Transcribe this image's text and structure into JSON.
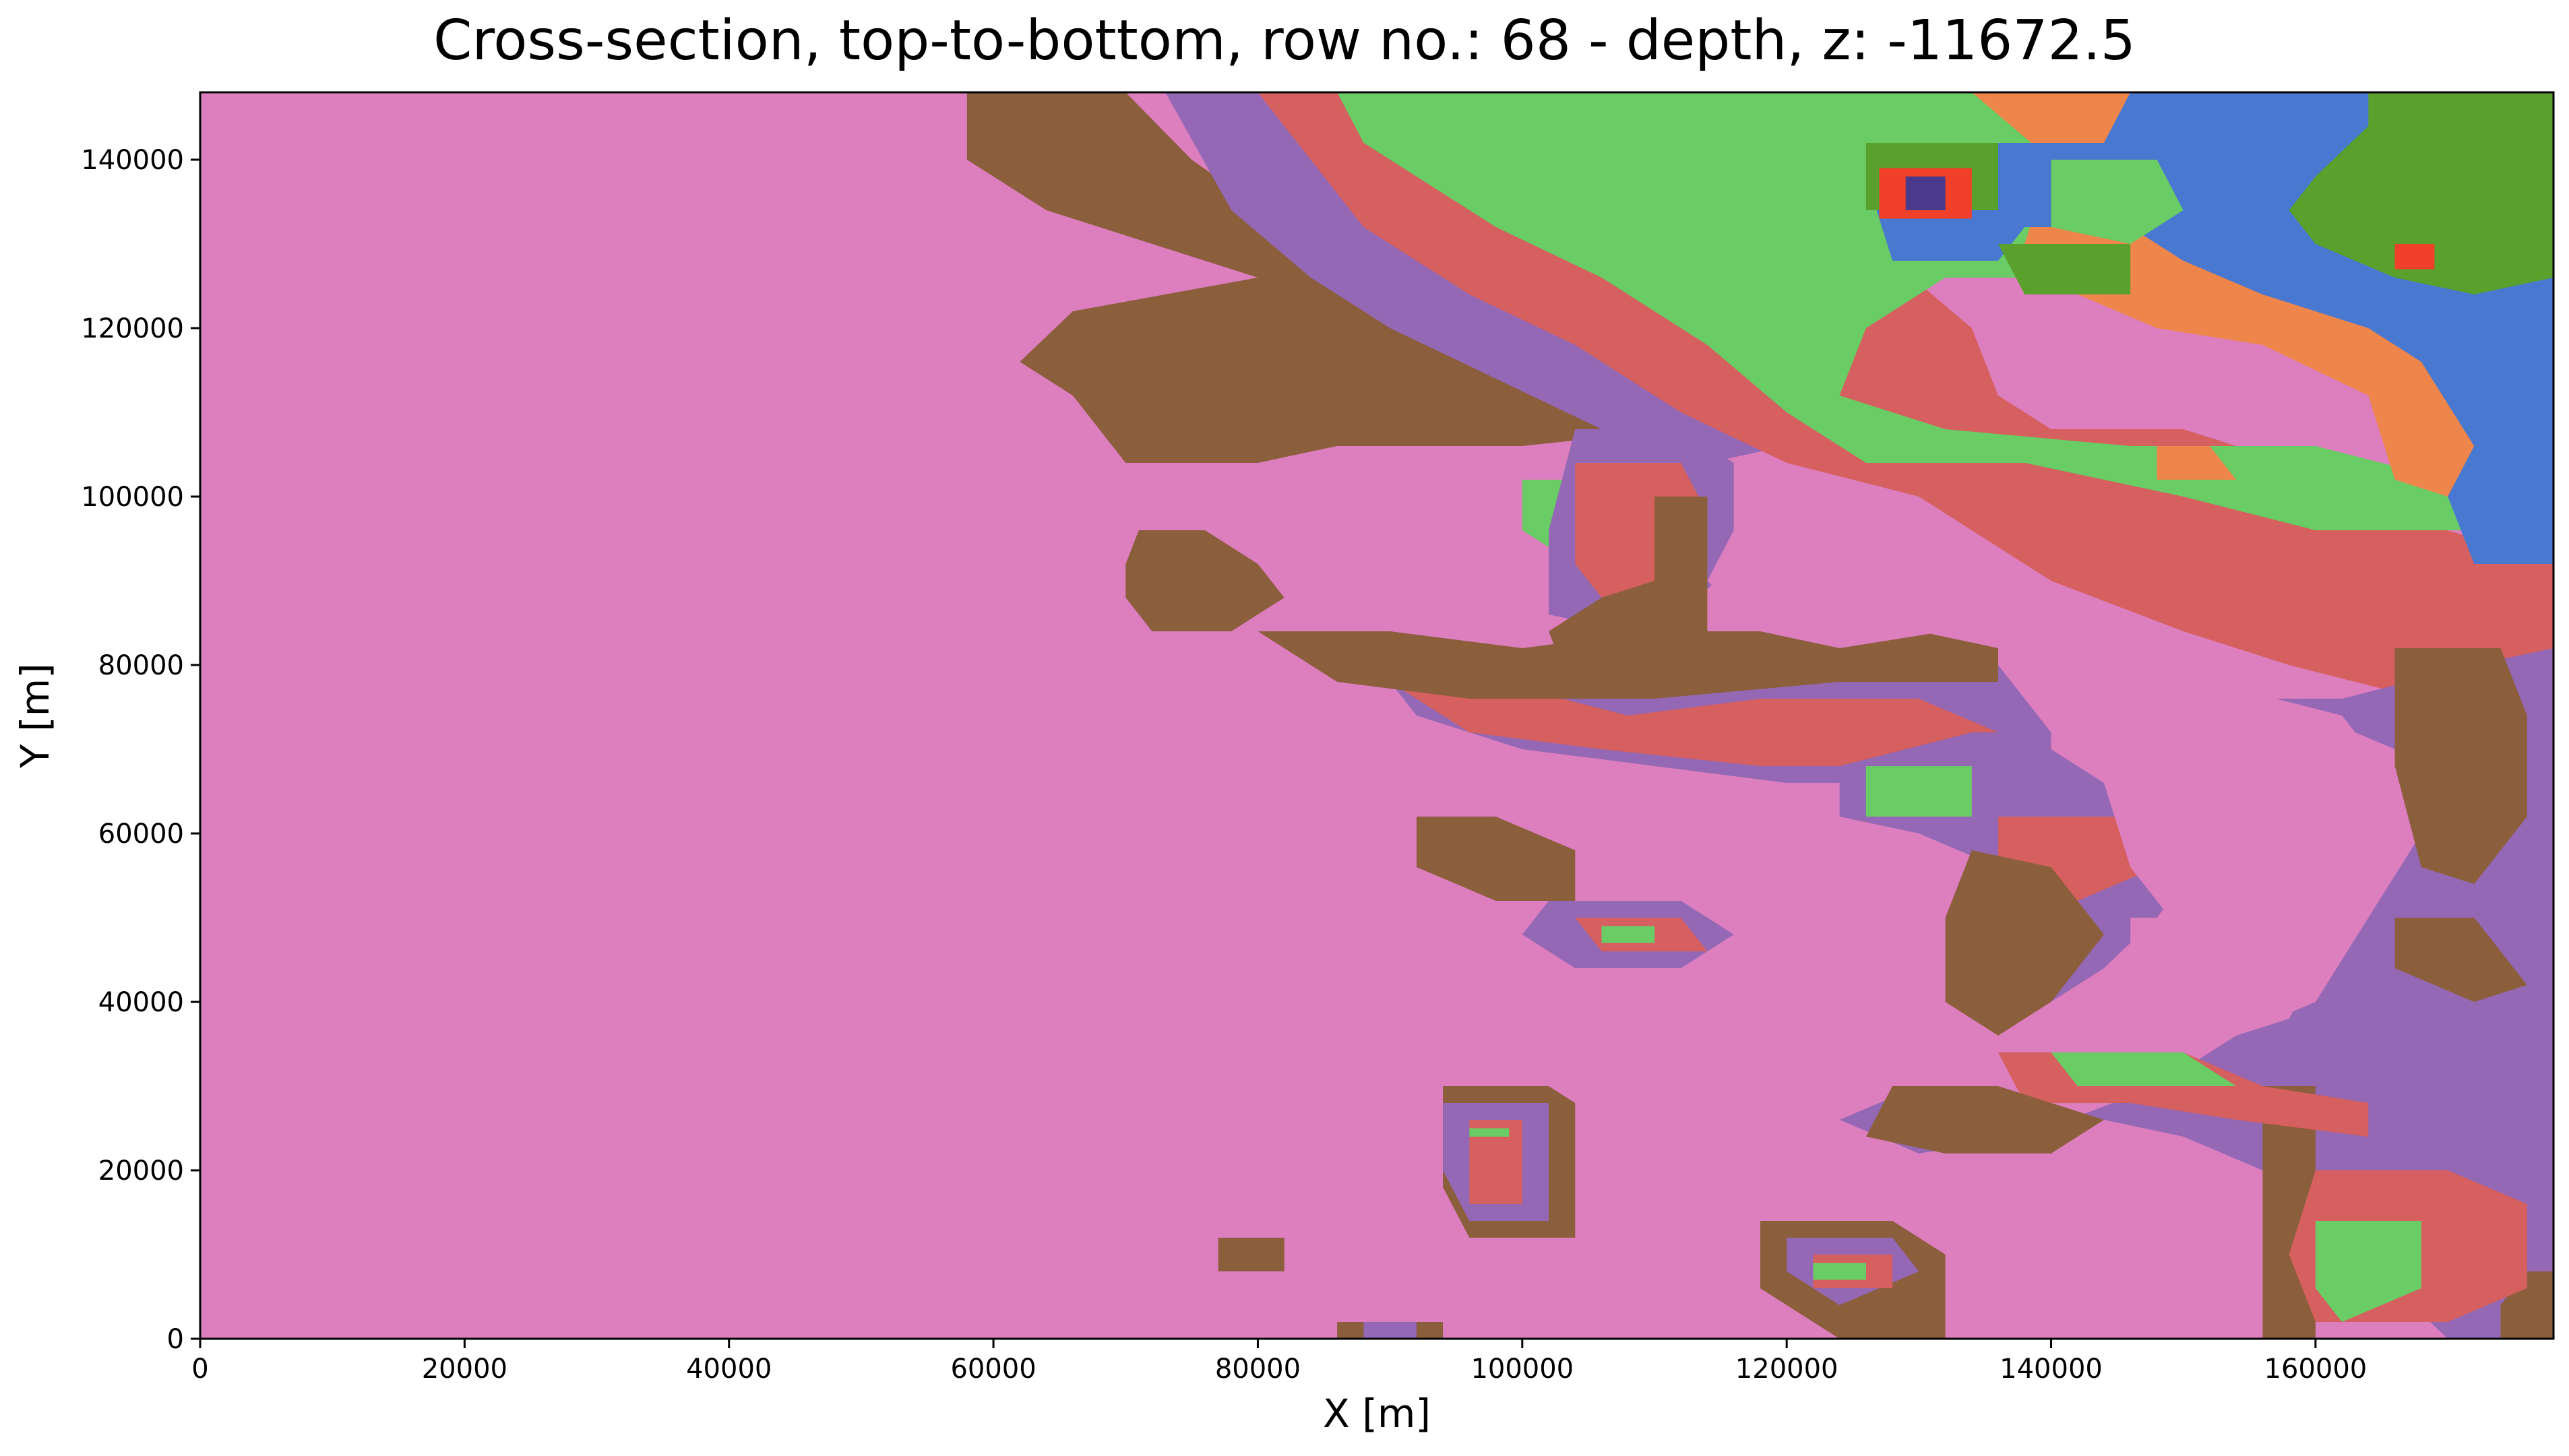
{
  "chart_data": {
    "type": "heatmap",
    "title": "Cross-section, top-to-bottom, row no.: 68 - depth, z: -11672.5",
    "xlabel": "X [m]",
    "ylabel": "Y [m]",
    "xlim": [
      0,
      178000
    ],
    "ylim": [
      0,
      148000
    ],
    "x_ticks": [
      0,
      20000,
      40000,
      60000,
      80000,
      100000,
      120000,
      140000,
      160000
    ],
    "y_ticks": [
      0,
      20000,
      40000,
      60000,
      80000,
      100000,
      120000,
      140000
    ],
    "grid": false,
    "legend": "none",
    "base_unit_color": "#dd7fbf",
    "unit_colors": {
      "pink": "#dd7fbf",
      "brown": "#8b5e3c",
      "purple": "#9468b5",
      "red": "#d65f5f",
      "light_green": "#6acc65",
      "orange": "#ee854a",
      "blue": "#4878cf",
      "dark_green": "#5aa02c",
      "bright_red": "#f0402a",
      "dark_purple": "#4a3a8c"
    }
  }
}
